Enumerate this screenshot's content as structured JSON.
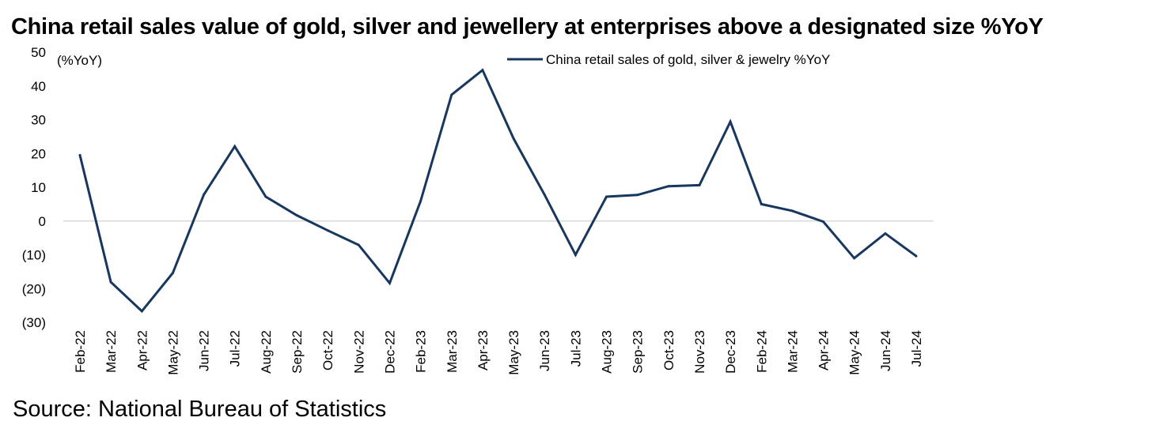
{
  "chart_data": {
    "type": "line",
    "title": "China retail sales value of gold, silver and jewellery at enterprises above a designated size %YoY",
    "ylabel": "(%YoY)",
    "xlabel": "",
    "ylim": [
      -30,
      50
    ],
    "yticks": [
      50,
      40,
      30,
      20,
      10,
      0,
      -10,
      -20,
      -30
    ],
    "ytick_labels": [
      "50",
      "40",
      "30",
      "20",
      "10",
      "0",
      "(10)",
      "(20)",
      "(30)"
    ],
    "grid": false,
    "legend_position": "top-center",
    "categories": [
      "Feb-22",
      "Mar-22",
      "Apr-22",
      "May-22",
      "Jun-22",
      "Jul-22",
      "Aug-22",
      "Sep-22",
      "Oct-22",
      "Nov-22",
      "Dec-22",
      "Feb-23",
      "Mar-23",
      "Apr-23",
      "May-23",
      "Jun-23",
      "Jul-23",
      "Aug-23",
      "Sep-23",
      "Oct-23",
      "Nov-23",
      "Dec-23",
      "Feb-24",
      "Mar-24",
      "Apr-24",
      "May-24",
      "Jun-24",
      "Jul-24"
    ],
    "series": [
      {
        "name": "China retail sales of gold, silver & jewelry %YoY",
        "color": "#17375e",
        "values": [
          19.5,
          -18.1,
          -26.7,
          -15.4,
          7.8,
          22.1,
          7.2,
          1.7,
          -2.8,
          -7.1,
          -18.4,
          5.9,
          37.4,
          44.7,
          24.4,
          7.8,
          -10.0,
          7.2,
          7.7,
          10.3,
          10.6,
          29.4,
          5.0,
          3.0,
          -0.2,
          -11.0,
          -3.7,
          -10.4
        ]
      }
    ]
  },
  "source": "Source: National Bureau of Statistics"
}
